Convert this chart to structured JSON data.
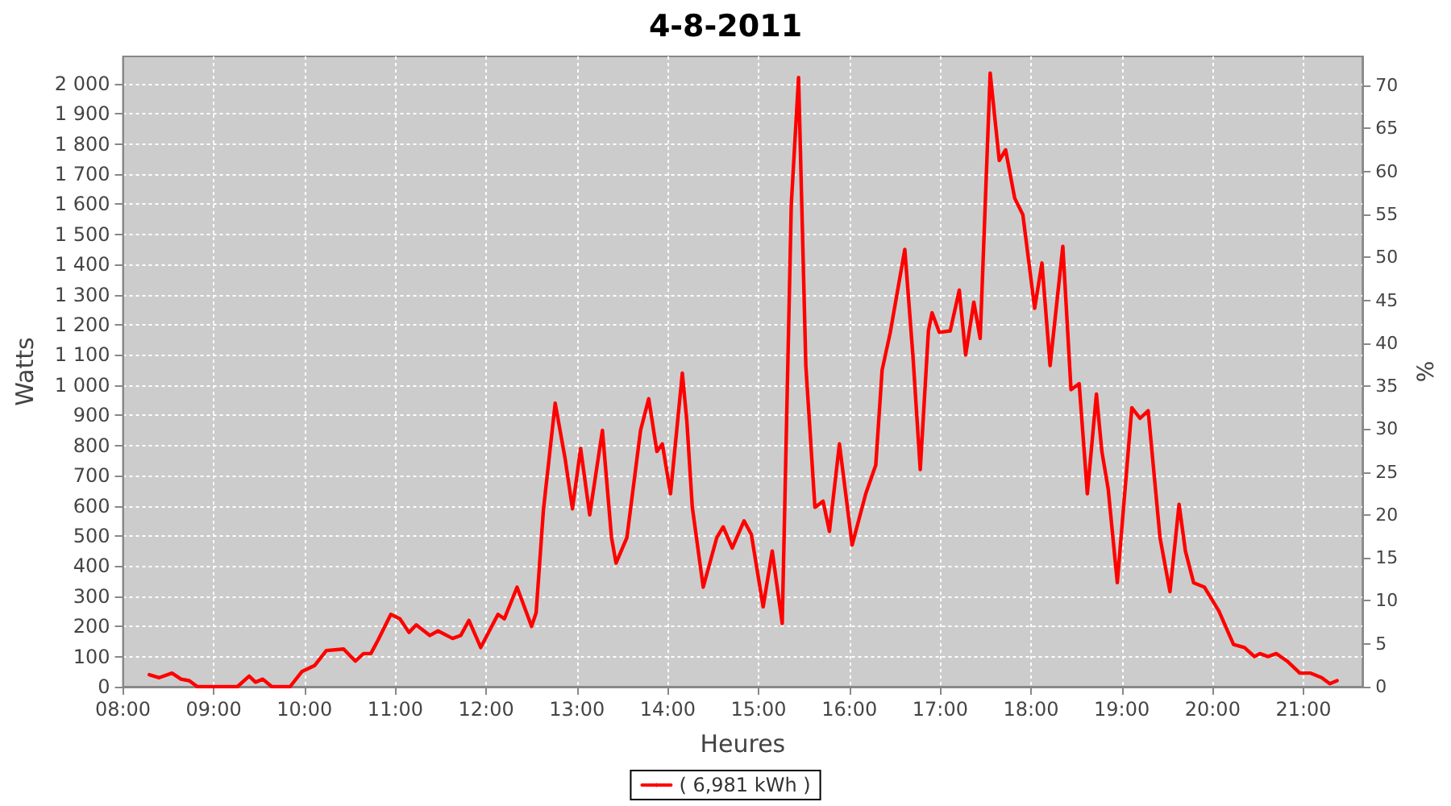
{
  "chart_data": {
    "type": "line",
    "title": "4-8-2011",
    "xlabel": "Heures",
    "ylabel": "Watts",
    "y2label": "%",
    "xlim": [
      8,
      21.65
    ],
    "xticks": [
      {
        "value": 8,
        "label": "08:00"
      },
      {
        "value": 9,
        "label": "09:00"
      },
      {
        "value": 10,
        "label": "10:00"
      },
      {
        "value": 11,
        "label": "11:00"
      },
      {
        "value": 12,
        "label": "12:00"
      },
      {
        "value": 13,
        "label": "13:00"
      },
      {
        "value": 14,
        "label": "14:00"
      },
      {
        "value": 15,
        "label": "15:00"
      },
      {
        "value": 16,
        "label": "16:00"
      },
      {
        "value": 17,
        "label": "17:00"
      },
      {
        "value": 18,
        "label": "18:00"
      },
      {
        "value": 19,
        "label": "19:00"
      },
      {
        "value": 20,
        "label": "20:00"
      },
      {
        "value": 21,
        "label": "21:00"
      }
    ],
    "ylim": [
      0,
      2090
    ],
    "yticks": [
      0,
      100,
      200,
      300,
      400,
      500,
      600,
      700,
      800,
      900,
      {
        "value": 1000,
        "label": "1 000"
      },
      {
        "value": 1100,
        "label": "1 100"
      },
      {
        "value": 1200,
        "label": "1 200"
      },
      {
        "value": 1300,
        "label": "1 300"
      },
      {
        "value": 1400,
        "label": "1 400"
      },
      {
        "value": 1500,
        "label": "1 500"
      },
      {
        "value": 1600,
        "label": "1 600"
      },
      {
        "value": 1700,
        "label": "1 700"
      },
      {
        "value": 1800,
        "label": "1 800"
      },
      {
        "value": 1900,
        "label": "1 900"
      },
      {
        "value": 2000,
        "label": "2 000"
      }
    ],
    "y2lim": [
      0,
      73.4
    ],
    "y2ticks": [
      0,
      5,
      10,
      15,
      20,
      25,
      30,
      35,
      40,
      45,
      50,
      55,
      60,
      65,
      70
    ],
    "grid": true,
    "legend": "bottom",
    "marker": "none",
    "line_style": "solid",
    "series": [
      {
        "name": "( 6,981 kWh )",
        "color": "#ff0000",
        "x": [
          8.29,
          8.4,
          8.54,
          8.64,
          8.73,
          8.82,
          9.26,
          9.39,
          9.46,
          9.54,
          9.64,
          9.84,
          9.97,
          10.11,
          10.24,
          10.43,
          10.56,
          10.65,
          10.73,
          10.81,
          10.95,
          11.05,
          11.15,
          11.23,
          11.38,
          11.47,
          11.63,
          11.72,
          11.81,
          11.94,
          12.13,
          12.2,
          12.34,
          12.5,
          12.55,
          12.63,
          12.76,
          12.87,
          12.95,
          13.04,
          13.14,
          13.28,
          13.38,
          13.43,
          13.55,
          13.7,
          13.79,
          13.88,
          13.94,
          14.03,
          14.16,
          14.21,
          14.27,
          14.39,
          14.54,
          14.61,
          14.71,
          14.84,
          14.92,
          15.05,
          15.15,
          15.26,
          15.36,
          15.44,
          15.52,
          15.62,
          15.71,
          15.78,
          15.89,
          16.03,
          16.18,
          16.29,
          16.36,
          16.45,
          16.61,
          16.7,
          16.78,
          16.87,
          16.91,
          16.99,
          17.11,
          17.21,
          17.28,
          17.37,
          17.44,
          17.55,
          17.65,
          17.72,
          17.82,
          17.91,
          18.04,
          18.12,
          18.21,
          18.35,
          18.44,
          18.53,
          18.62,
          18.72,
          18.78,
          18.85,
          18.95,
          19.11,
          19.2,
          19.29,
          19.42,
          19.53,
          19.63,
          19.7,
          19.79,
          19.91,
          20.07,
          20.23,
          20.35,
          20.46,
          20.52,
          20.61,
          20.7,
          20.82,
          20.96,
          21.08,
          21.2,
          21.29,
          21.37
        ],
        "values": [
          40,
          30,
          45,
          25,
          20,
          0,
          0,
          35,
          15,
          25,
          0,
          0,
          50,
          70,
          120,
          125,
          85,
          110,
          110,
          155,
          240,
          225,
          180,
          205,
          170,
          185,
          160,
          170,
          220,
          130,
          240,
          225,
          330,
          200,
          245,
          585,
          940,
          755,
          590,
          790,
          570,
          850,
          495,
          410,
          495,
          850,
          955,
          780,
          805,
          640,
          1040,
          880,
          595,
          330,
          495,
          530,
          460,
          550,
          505,
          265,
          450,
          210,
          1600,
          2020,
          1065,
          595,
          615,
          515,
          805,
          470,
          640,
          735,
          1050,
          1175,
          1450,
          1095,
          720,
          1180,
          1240,
          1175,
          1180,
          1315,
          1100,
          1275,
          1155,
          2035,
          1745,
          1780,
          1620,
          1565,
          1255,
          1405,
          1065,
          1460,
          985,
          1005,
          640,
          970,
          780,
          655,
          345,
          925,
          890,
          915,
          495,
          315,
          605,
          450,
          345,
          330,
          250,
          140,
          130,
          100,
          110,
          100,
          110,
          85,
          45,
          45,
          30,
          10,
          20
        ]
      }
    ]
  }
}
